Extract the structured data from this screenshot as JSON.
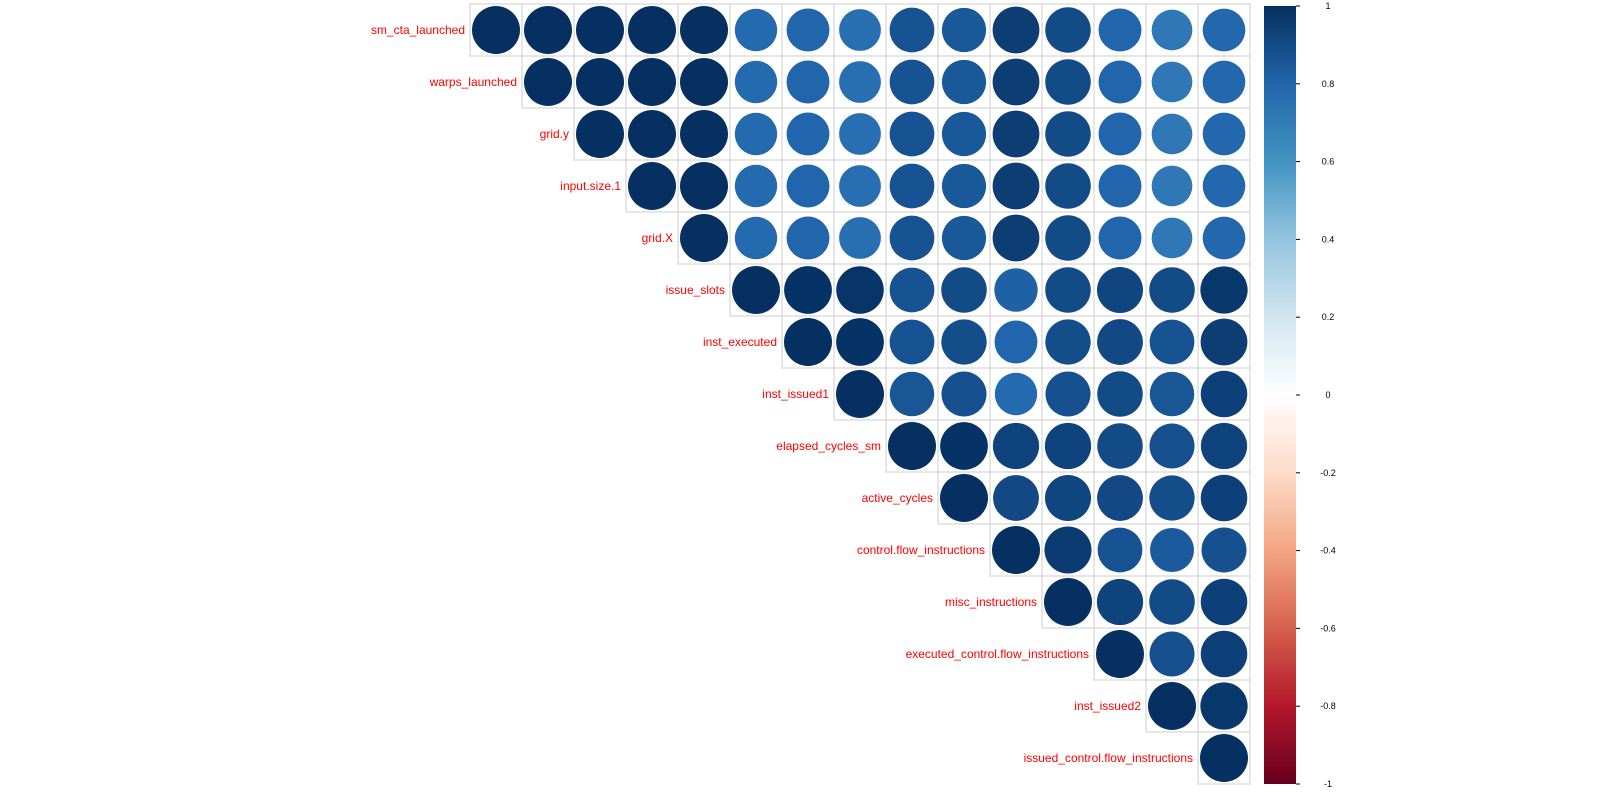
{
  "chart_data": {
    "type": "heatmap",
    "title": "",
    "variables": [
      "sm_cta_launched",
      "warps_launched",
      "grid.y",
      "input.size.1",
      "grid.X",
      "issue_slots",
      "inst_executed",
      "inst_issued1",
      "elapsed_cycles_sm",
      "active_cycles",
      "control.flow_instructions",
      "misc_instructions",
      "executed_control.flow_instructions",
      "inst_issued2",
      "issued_control.flow_instructions"
    ],
    "layout": "upper-triangle",
    "values": [
      [
        1.0,
        1.0,
        1.0,
        1.0,
        1.0,
        0.78,
        0.8,
        0.76,
        0.87,
        0.85,
        0.95,
        0.9,
        0.8,
        0.72,
        0.79
      ],
      [
        null,
        1.0,
        1.0,
        1.0,
        1.0,
        0.78,
        0.8,
        0.76,
        0.87,
        0.85,
        0.95,
        0.9,
        0.8,
        0.72,
        0.79
      ],
      [
        null,
        null,
        1.0,
        1.0,
        1.0,
        0.78,
        0.8,
        0.76,
        0.87,
        0.85,
        0.95,
        0.9,
        0.8,
        0.72,
        0.79
      ],
      [
        null,
        null,
        null,
        1.0,
        1.0,
        0.78,
        0.8,
        0.76,
        0.87,
        0.85,
        0.95,
        0.9,
        0.8,
        0.72,
        0.79
      ],
      [
        null,
        null,
        null,
        null,
        1.0,
        0.78,
        0.8,
        0.76,
        0.87,
        0.85,
        0.95,
        0.9,
        0.8,
        0.72,
        0.79
      ],
      [
        null,
        null,
        null,
        null,
        null,
        1.0,
        0.99,
        0.98,
        0.87,
        0.9,
        0.82,
        0.9,
        0.92,
        0.9,
        0.97
      ],
      [
        null,
        null,
        null,
        null,
        null,
        null,
        1.0,
        0.99,
        0.87,
        0.89,
        0.8,
        0.89,
        0.91,
        0.87,
        0.95
      ],
      [
        null,
        null,
        null,
        null,
        null,
        null,
        null,
        1.0,
        0.86,
        0.88,
        0.78,
        0.88,
        0.9,
        0.86,
        0.94
      ],
      [
        null,
        null,
        null,
        null,
        null,
        null,
        null,
        null,
        1.0,
        0.99,
        0.93,
        0.93,
        0.9,
        0.88,
        0.93
      ],
      [
        null,
        null,
        null,
        null,
        null,
        null,
        null,
        null,
        null,
        1.0,
        0.91,
        0.92,
        0.91,
        0.89,
        0.94
      ],
      [
        null,
        null,
        null,
        null,
        null,
        null,
        null,
        null,
        null,
        null,
        1.0,
        0.96,
        0.87,
        0.84,
        0.88
      ],
      [
        null,
        null,
        null,
        null,
        null,
        null,
        null,
        null,
        null,
        null,
        null,
        1.0,
        0.93,
        0.9,
        0.94
      ],
      [
        null,
        null,
        null,
        null,
        null,
        null,
        null,
        null,
        null,
        null,
        null,
        null,
        1.0,
        0.88,
        0.94
      ],
      [
        null,
        null,
        null,
        null,
        null,
        null,
        null,
        null,
        null,
        null,
        null,
        null,
        null,
        1.0,
        0.97
      ],
      [
        null,
        null,
        null,
        null,
        null,
        null,
        null,
        null,
        null,
        null,
        null,
        null,
        null,
        null,
        1.0
      ]
    ],
    "colorbar": {
      "range": [
        -1,
        1
      ],
      "ticks": [
        1,
        0.8,
        0.6,
        0.4,
        0.2,
        0,
        -0.2,
        -0.4,
        -0.6,
        -0.8,
        -1
      ]
    },
    "colors": {
      "label": "#ff0000",
      "grid": "#cccccc",
      "stops": [
        "#67001f",
        "#b2182b",
        "#d6604d",
        "#f4a582",
        "#fddbc7",
        "#ffffff",
        "#d1e5f0",
        "#92c5de",
        "#4393c3",
        "#2166ac",
        "#053061"
      ]
    }
  }
}
